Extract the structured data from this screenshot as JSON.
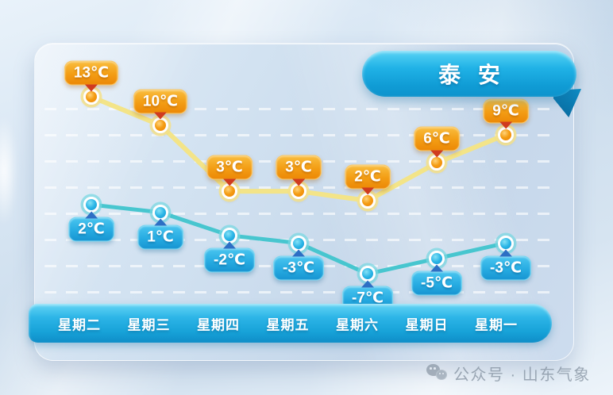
{
  "title": "泰 安",
  "watermark": {
    "label": "公众号 · 山东气象",
    "icon": "wechat-icon"
  },
  "chart_data": {
    "type": "line",
    "title": "泰 安",
    "categories": [
      "星期二",
      "星期三",
      "星期四",
      "星期五",
      "星期六",
      "星期日",
      "星期一"
    ],
    "unit": "℃",
    "series": [
      {
        "name": "high",
        "values": [
          13,
          10,
          3,
          3,
          2,
          6,
          9
        ],
        "labels": [
          "13℃",
          "10℃",
          "3℃",
          "3℃",
          "2℃",
          "6℃",
          "9℃"
        ],
        "line_color": "#f3e488",
        "marker_color": "#f0930f",
        "label_bg": "#f39d14",
        "arrow_color": "#d03b1f"
      },
      {
        "name": "low",
        "values": [
          2,
          1,
          -2,
          -3,
          -7,
          -5,
          -3
        ],
        "labels": [
          "2℃",
          "1℃",
          "-2℃",
          "-3℃",
          "-7℃",
          "-5℃",
          "-3℃"
        ],
        "line_color": "#47c6cf",
        "marker_color": "#2ab5e6",
        "label_bg": "#27ace2",
        "arrow_color": "#2d6fc4"
      }
    ],
    "grid": "horizontal-dashed",
    "legend_position": "none",
    "x_axis_position": "bottom-bar"
  },
  "colors": {
    "ribbon": "#18aadf",
    "day_bar": "#26b0e2",
    "card_bg": "#cfe0ef",
    "background": "#d9e7f4"
  }
}
